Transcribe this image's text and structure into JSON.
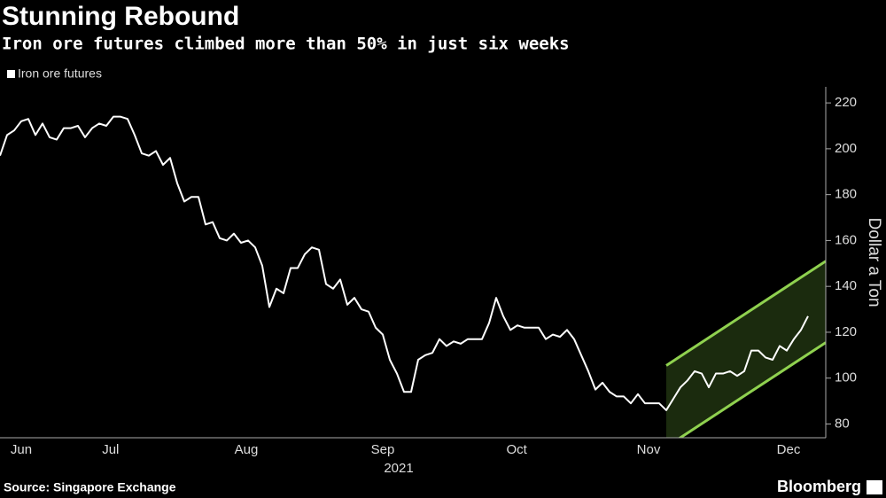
{
  "chart_data": {
    "type": "line",
    "title": "Stunning Rebound",
    "subtitle": "Iron ore futures climbed more than 50% in just six weeks",
    "y_label": "Dollar a Ton",
    "x_label": "2021",
    "source": "Source: Singapore Exchange",
    "brand": "Bloomberg",
    "xlim": [
      0,
      116.5
    ],
    "xticks": [
      {
        "value": 3,
        "label": "Jun"
      },
      {
        "value": 15.6,
        "label": "Jul"
      },
      {
        "value": 34.75,
        "label": "Aug"
      },
      {
        "value": 54,
        "label": "Sep"
      },
      {
        "value": 72.9,
        "label": "Oct"
      },
      {
        "value": 91.5,
        "label": "Nov"
      },
      {
        "value": 111.25,
        "label": "Dec"
      }
    ],
    "ylim": [
      74,
      227
    ],
    "yticks": [
      80,
      100,
      120,
      140,
      160,
      180,
      200,
      220
    ],
    "legend": "top-left",
    "series": [
      {
        "name": "Iron ore futures",
        "color": "#ffffff",
        "values": [
          197,
          206,
          208,
          212,
          213,
          206,
          211,
          205,
          204,
          209,
          209,
          210,
          205,
          209,
          211,
          210,
          214,
          214,
          213,
          206,
          198,
          197,
          199,
          193,
          196,
          185,
          177,
          179,
          179,
          167,
          168,
          161,
          160,
          163,
          159,
          160,
          157,
          149,
          131,
          139,
          137,
          148,
          148,
          154,
          157,
          156,
          141,
          139,
          143,
          132,
          135,
          130,
          129,
          122,
          119,
          108,
          102,
          94,
          94,
          108,
          110,
          111,
          117,
          114,
          116,
          115,
          117,
          117,
          117,
          124,
          135,
          127,
          121,
          123,
          122,
          122,
          122,
          117,
          119,
          118,
          121,
          117,
          110,
          103,
          95,
          98,
          94,
          92,
          92,
          89,
          93,
          89,
          89,
          89,
          86,
          91,
          96,
          99,
          103,
          102,
          96,
          102,
          102,
          103,
          101,
          103,
          112,
          112,
          109,
          108,
          114,
          112,
          117,
          121,
          127
        ]
      }
    ],
    "channel": {
      "color": "#8fd14f",
      "fill": "#1b2b0e",
      "x": [
        94,
        116.5
      ],
      "upper": [
        105.5,
        151
      ],
      "lower": [
        70,
        115.5
      ]
    }
  }
}
